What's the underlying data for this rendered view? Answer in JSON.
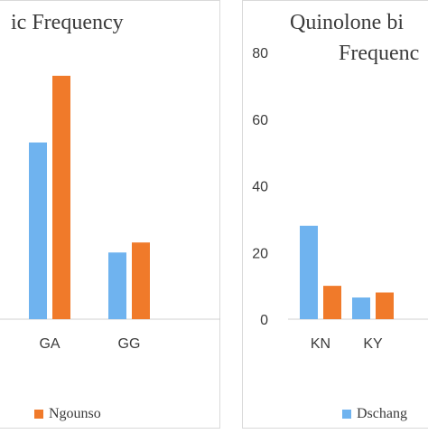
{
  "chart_data": [
    {
      "type": "bar",
      "title": "ic Frequency",
      "categories": [
        "GA",
        "GG"
      ],
      "series": [
        {
          "name": "",
          "color": "#6fb3ef",
          "values": [
            53,
            20
          ]
        },
        {
          "name": "Ngounso",
          "color": "#f07a2a",
          "values": [
            73,
            23
          ]
        }
      ],
      "ylim": [
        0,
        80
      ],
      "legend": "bottom"
    },
    {
      "type": "bar",
      "title": [
        "Quinolone bi",
        "Frequenc"
      ],
      "categories": [
        "KN",
        "KY"
      ],
      "yticks": [
        "80",
        "60",
        "40",
        "20",
        "0"
      ],
      "series": [
        {
          "name": "Dschang",
          "color": "#6fb3ef",
          "values": [
            28,
            6.5
          ]
        },
        {
          "name": "",
          "color": "#f07a2a",
          "values": [
            10,
            8
          ]
        }
      ],
      "ylim": [
        0,
        80
      ],
      "legend": "bottom"
    }
  ]
}
